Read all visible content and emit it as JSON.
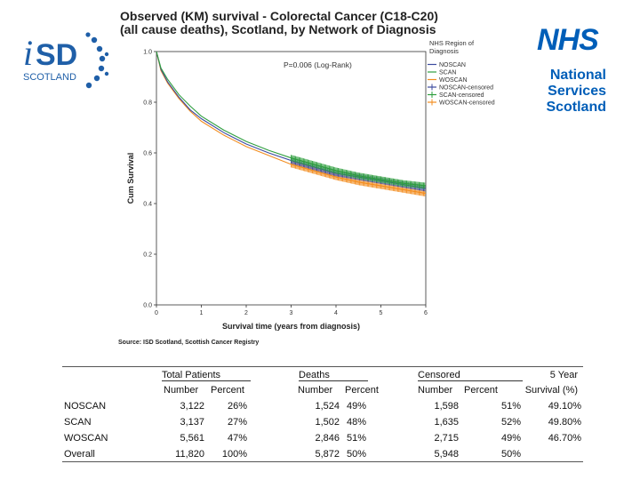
{
  "logos": {
    "isd_text": "SCOTLAND",
    "nhs_word": "NHS",
    "nhs_lines": [
      "National",
      "Services",
      "Scotland"
    ]
  },
  "colors": {
    "nhs_blue": "#005EB8",
    "isd_blue": "#1F5FA8",
    "noscan": "#3B4A9E",
    "scan": "#2E9E3E",
    "woscan": "#F28C1E"
  },
  "chart_data": {
    "type": "line",
    "title_line1": "Observed (KM) survival - Colorectal Cancer (C18-C20)",
    "title_line2": "(all cause deaths), Scotland, by Network of Diagnosis",
    "annotation": "P=0.006 (Log-Rank)",
    "xlabel": "Survival time (years from diagnosis)",
    "ylabel": "Cum Survival",
    "xlim": [
      0,
      6
    ],
    "ylim": [
      0,
      1
    ],
    "xticks": [
      "0",
      "1",
      "2",
      "3",
      "4",
      "5",
      "6"
    ],
    "yticks": [
      "0.0",
      "0.2",
      "0.4",
      "0.6",
      "0.8",
      "1.0"
    ],
    "legend_title": [
      "NHS Region of",
      "Diagnosis"
    ],
    "legend_position": "top-right",
    "legend": [
      "NOSCAN",
      "SCAN",
      "WOSCAN",
      "NOSCAN-censored",
      "SCAN-censored",
      "WOSCAN-censored"
    ],
    "grid": false,
    "series": [
      {
        "name": "NOSCAN",
        "color": "#3B4A9E",
        "x": [
          0,
          0.1,
          0.25,
          0.5,
          0.75,
          1,
          1.5,
          2,
          2.5,
          3,
          3.5,
          4,
          4.5,
          5,
          5.5,
          6
        ],
        "y": [
          1.0,
          0.93,
          0.88,
          0.82,
          0.77,
          0.735,
          0.68,
          0.635,
          0.6,
          0.57,
          0.545,
          0.52,
          0.505,
          0.49,
          0.475,
          0.46
        ]
      },
      {
        "name": "SCAN",
        "color": "#2E9E3E",
        "x": [
          0,
          0.1,
          0.25,
          0.5,
          0.75,
          1,
          1.5,
          2,
          2.5,
          3,
          3.5,
          4,
          4.5,
          5,
          5.5,
          6
        ],
        "y": [
          1.0,
          0.935,
          0.89,
          0.83,
          0.785,
          0.745,
          0.69,
          0.645,
          0.61,
          0.58,
          0.555,
          0.53,
          0.51,
          0.495,
          0.48,
          0.47
        ]
      },
      {
        "name": "WOSCAN",
        "color": "#F28C1E",
        "x": [
          0,
          0.1,
          0.25,
          0.5,
          0.75,
          1,
          1.5,
          2,
          2.5,
          3,
          3.5,
          4,
          4.5,
          5,
          5.5,
          6
        ],
        "y": [
          1.0,
          0.925,
          0.875,
          0.815,
          0.765,
          0.725,
          0.67,
          0.625,
          0.59,
          0.555,
          0.53,
          0.505,
          0.485,
          0.47,
          0.455,
          0.44
        ]
      }
    ],
    "censored_start_x": 3,
    "source": "Source: ISD Scotland, Scottish Cancer Registry"
  },
  "table": {
    "group_headers": [
      "Total Patients",
      "Deaths",
      "Censored",
      "5 Year"
    ],
    "sub_headers": [
      "Number",
      "Percent",
      "Number",
      "Percent",
      "Number",
      "Percent",
      "Survival (%)"
    ],
    "rows": [
      {
        "label": "NOSCAN",
        "tp_n": "3,122",
        "tp_p": "26%",
        "d_n": "1,524",
        "d_p": "49%",
        "c_n": "1,598",
        "c_p": "51%",
        "s5": "49.10%"
      },
      {
        "label": "SCAN",
        "tp_n": "3,137",
        "tp_p": "27%",
        "d_n": "1,502",
        "d_p": "48%",
        "c_n": "1,635",
        "c_p": "52%",
        "s5": "49.80%"
      },
      {
        "label": "WOSCAN",
        "tp_n": "5,561",
        "tp_p": "47%",
        "d_n": "2,846",
        "d_p": "51%",
        "c_n": "2,715",
        "c_p": "49%",
        "s5": "46.70%"
      },
      {
        "label": "Overall",
        "tp_n": "11,820",
        "tp_p": "100%",
        "d_n": "5,872",
        "d_p": "50%",
        "c_n": "5,948",
        "c_p": "50%",
        "s5": ""
      }
    ]
  }
}
